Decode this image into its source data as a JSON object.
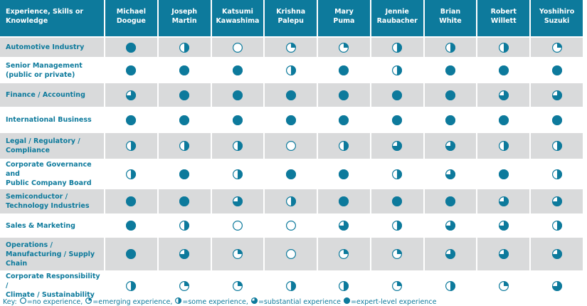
{
  "table": {
    "header": [
      "Experience, Skills or\nKnowledge",
      "Michael\nDoogue",
      "Joseph\nMartin",
      "Katsumi\nKawashima",
      "Krishna\nPalepu",
      "Mary\nPuma",
      "Jennie\nRaubacher",
      "Brian\nWhite",
      "Robert\nWillett",
      "Yoshihiro\nSuzuki"
    ],
    "rows": [
      {
        "label": "Automotive Industry",
        "levels": [
          4,
          2,
          0,
          1,
          1,
          2,
          2,
          2,
          1
        ]
      },
      {
        "label": "Senior Management\n(public or private)",
        "levels": [
          4,
          4,
          4,
          2,
          4,
          2,
          4,
          4,
          4
        ]
      },
      {
        "label": "Finance / Accounting",
        "levels": [
          3,
          4,
          4,
          4,
          4,
          4,
          4,
          3,
          3
        ]
      },
      {
        "label": "International Business",
        "levels": [
          4,
          4,
          4,
          4,
          4,
          4,
          4,
          4,
          4
        ]
      },
      {
        "label": "Legal / Regulatory /\nCompliance",
        "levels": [
          2,
          2,
          2,
          0,
          2,
          3,
          3,
          2,
          2
        ]
      },
      {
        "label": "Corporate Governance and\nPublic Company Board",
        "levels": [
          2,
          4,
          2,
          4,
          4,
          2,
          3,
          4,
          2
        ]
      },
      {
        "label": "Semiconductor /\nTechnology Industries",
        "levels": [
          4,
          4,
          3,
          2,
          4,
          4,
          4,
          3,
          3
        ]
      },
      {
        "label": "Sales & Marketing",
        "levels": [
          4,
          2,
          0,
          0,
          3,
          2,
          3,
          3,
          2
        ]
      },
      {
        "label": "Operations /\nManufacturing / Supply\nChain",
        "levels": [
          4,
          3,
          1,
          0,
          1,
          1,
          3,
          3,
          3
        ]
      },
      {
        "label": "Corporate Responsibility /\nClimate / Sustainability",
        "levels": [
          2,
          1,
          1,
          2,
          2,
          1,
          2,
          1,
          3
        ]
      }
    ]
  },
  "key": {
    "label": "Key:",
    "items": [
      {
        "level": 0,
        "text": "=no experience,"
      },
      {
        "level": 1,
        "text": "=emerging experience,"
      },
      {
        "level": 2,
        "text": "=some experience,"
      },
      {
        "level": 3,
        "text": "=substantial experience"
      },
      {
        "level": 4,
        "text": "=expert-level experience"
      }
    ]
  }
}
